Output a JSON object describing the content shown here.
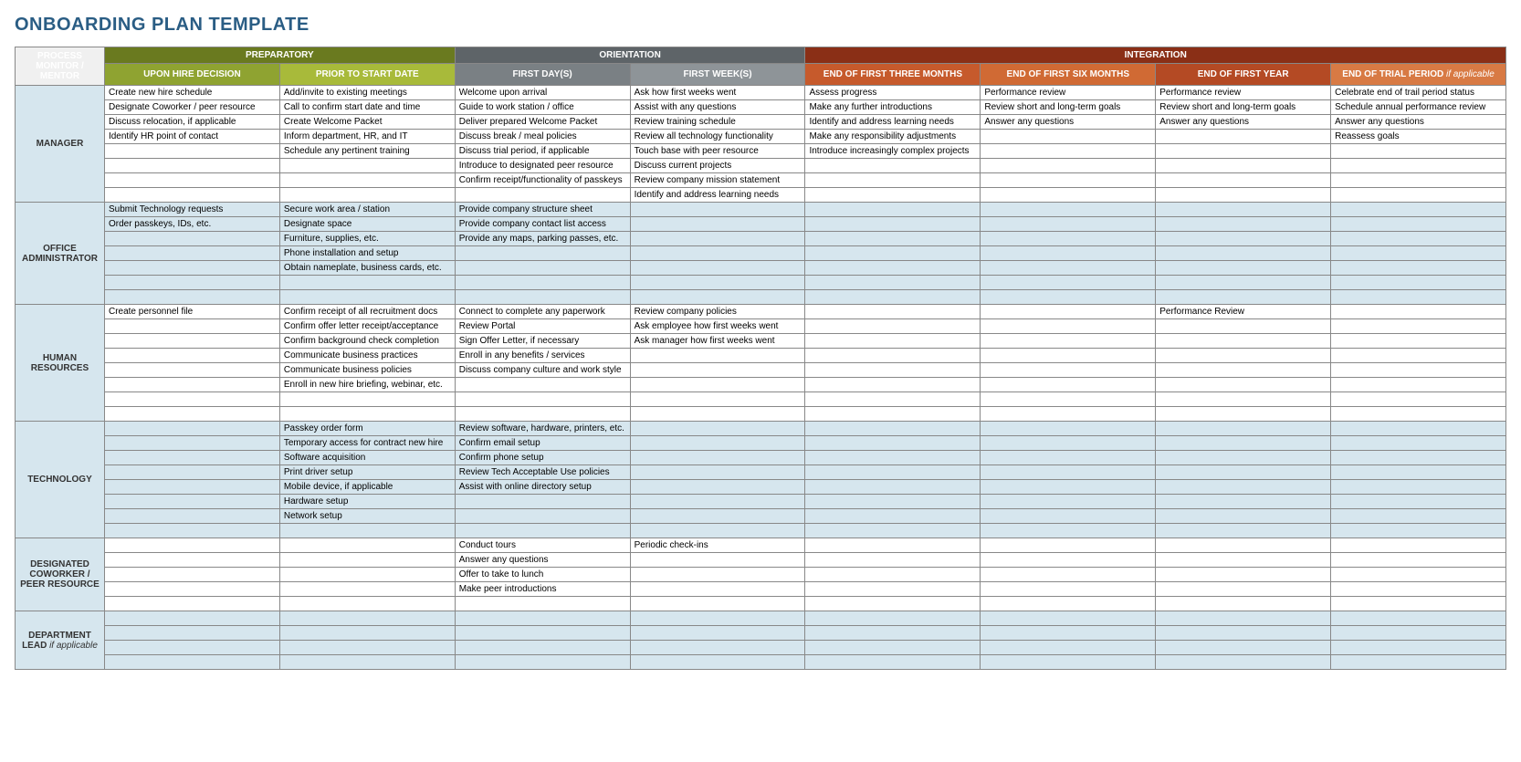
{
  "title": "ONBOARDING PLAN TEMPLATE",
  "corner_label": "PROCESS MONITOR / MENTOR",
  "phases": [
    {
      "label": "PREPARATORY",
      "span": 2,
      "class": "phase-prep"
    },
    {
      "label": "ORIENTATION",
      "span": 2,
      "class": "phase-orient"
    },
    {
      "label": "INTEGRATION",
      "span": 4,
      "class": "phase-integ"
    }
  ],
  "subphases": [
    {
      "label": "UPON HIRE DECISION",
      "class": "sub-prep-1"
    },
    {
      "label": "PRIOR TO START DATE",
      "class": "sub-prep-2"
    },
    {
      "label": "FIRST DAY(S)",
      "class": "sub-orient-1"
    },
    {
      "label": "FIRST WEEK(S)",
      "class": "sub-orient-2"
    },
    {
      "label": "END OF FIRST THREE MONTHS",
      "class": "sub-integ-1"
    },
    {
      "label": "END OF FIRST SIX MONTHS",
      "class": "sub-integ-2"
    },
    {
      "label": "END OF FIRST YEAR",
      "class": "sub-integ-3"
    },
    {
      "label": "END OF TRIAL PERIOD if applicable",
      "class": "sub-integ-4"
    }
  ],
  "sections": [
    {
      "role": "MANAGER",
      "shaded": false,
      "rows": [
        [
          "Create new hire schedule",
          "Add/invite to existing meetings",
          "Welcome upon arrival",
          "Ask how first weeks went",
          "Assess progress",
          "Performance review",
          "Performance review",
          "Celebrate end of trail period status"
        ],
        [
          "Designate Coworker / peer resource",
          "Call to confirm start date and time",
          "Guide to work station / office",
          "Assist with any questions",
          "Make any further introductions",
          "Review short and long-term goals",
          "Review short and long-term goals",
          "Schedule annual performance review"
        ],
        [
          "Discuss relocation, if applicable",
          "Create Welcome Packet",
          "Deliver prepared Welcome Packet",
          "Review training schedule",
          "Identify and address learning needs",
          "Answer any questions",
          "Answer any questions",
          "Answer any questions"
        ],
        [
          "Identify HR point of contact",
          "Inform department, HR, and IT",
          "Discuss break / meal policies",
          "Review all technology functionality",
          "Make any responsibility adjustments",
          "",
          "",
          "Reassess goals"
        ],
        [
          "",
          "Schedule any pertinent training",
          "Discuss trial period, if applicable",
          "Touch base with peer resource",
          "Introduce increasingly complex projects",
          "",
          "",
          ""
        ],
        [
          "",
          "",
          "Introduce to designated peer resource",
          "Discuss current projects",
          "",
          "",
          "",
          ""
        ],
        [
          "",
          "",
          "Confirm receipt/functionality of passkeys",
          "Review company mission statement",
          "",
          "",
          "",
          ""
        ],
        [
          "",
          "",
          "",
          "Identify and address learning needs",
          "",
          "",
          "",
          ""
        ]
      ]
    },
    {
      "role": "OFFICE ADMINISTRATOR",
      "shaded": true,
      "rows": [
        [
          "Submit Technology requests",
          "Secure work area / station",
          "Provide company structure sheet",
          "",
          "",
          "",
          "",
          ""
        ],
        [
          "Order passkeys, IDs, etc.",
          "Designate space",
          "Provide company contact list access",
          "",
          "",
          "",
          "",
          ""
        ],
        [
          "",
          "Furniture, supplies, etc.",
          "Provide any maps, parking passes, etc.",
          "",
          "",
          "",
          "",
          ""
        ],
        [
          "",
          "Phone installation and setup",
          "",
          "",
          "",
          "",
          "",
          ""
        ],
        [
          "",
          "Obtain nameplate, business cards, etc.",
          "",
          "",
          "",
          "",
          "",
          ""
        ],
        [
          "",
          "",
          "",
          "",
          "",
          "",
          "",
          ""
        ],
        [
          "",
          "",
          "",
          "",
          "",
          "",
          "",
          ""
        ]
      ]
    },
    {
      "role": "HUMAN RESOURCES",
      "shaded": false,
      "rows": [
        [
          "Create personnel file",
          "Confirm receipt of all recruitment docs",
          "Connect to complete any paperwork",
          "Review company policies",
          "",
          "",
          "Performance Review",
          ""
        ],
        [
          "",
          "Confirm offer letter receipt/acceptance",
          "Review Portal",
          "Ask employee how first weeks went",
          "",
          "",
          "",
          ""
        ],
        [
          "",
          "Confirm background check completion",
          "Sign Offer Letter, if necessary",
          "Ask manager how first weeks went",
          "",
          "",
          "",
          ""
        ],
        [
          "",
          "Communicate business practices",
          "Enroll in any benefits / services",
          "",
          "",
          "",
          "",
          ""
        ],
        [
          "",
          "Communicate business policies",
          "Discuss company culture and work style",
          "",
          "",
          "",
          "",
          ""
        ],
        [
          "",
          "Enroll in new hire briefing, webinar, etc.",
          "",
          "",
          "",
          "",
          "",
          ""
        ],
        [
          "",
          "",
          "",
          "",
          "",
          "",
          "",
          ""
        ],
        [
          "",
          "",
          "",
          "",
          "",
          "",
          "",
          ""
        ]
      ]
    },
    {
      "role": "TECHNOLOGY",
      "shaded": true,
      "rows": [
        [
          "",
          "Passkey order form",
          "Review software, hardware, printers, etc.",
          "",
          "",
          "",
          "",
          ""
        ],
        [
          "",
          "Temporary access for contract new hire",
          "Confirm email setup",
          "",
          "",
          "",
          "",
          ""
        ],
        [
          "",
          "Software acquisition",
          "Confirm phone setup",
          "",
          "",
          "",
          "",
          ""
        ],
        [
          "",
          "Print driver setup",
          "Review Tech Acceptable Use policies",
          "",
          "",
          "",
          "",
          ""
        ],
        [
          "",
          "Mobile device, if applicable",
          "Assist with online directory setup",
          "",
          "",
          "",
          "",
          ""
        ],
        [
          "",
          "Hardware setup",
          "",
          "",
          "",
          "",
          "",
          ""
        ],
        [
          "",
          "Network setup",
          "",
          "",
          "",
          "",
          "",
          ""
        ],
        [
          "",
          "",
          "",
          "",
          "",
          "",
          "",
          ""
        ]
      ]
    },
    {
      "role": "DESIGNATED COWORKER / PEER RESOURCE",
      "shaded": false,
      "rows": [
        [
          "",
          "",
          "Conduct tours",
          "Periodic check-ins",
          "",
          "",
          "",
          ""
        ],
        [
          "",
          "",
          "Answer any questions",
          "",
          "",
          "",
          "",
          ""
        ],
        [
          "",
          "",
          "Offer to take to lunch",
          "",
          "",
          "",
          "",
          ""
        ],
        [
          "",
          "",
          "Make peer introductions",
          "",
          "",
          "",
          "",
          ""
        ],
        [
          "",
          "",
          "",
          "",
          "",
          "",
          "",
          ""
        ]
      ]
    },
    {
      "role_html": "DEPARTMENT LEAD <span class='ital'>if applicable</span>",
      "role": "DEPARTMENT LEAD if applicable",
      "shaded": true,
      "rows": [
        [
          "",
          "",
          "",
          "",
          "",
          "",
          "",
          ""
        ],
        [
          "",
          "",
          "",
          "",
          "",
          "",
          "",
          ""
        ],
        [
          "",
          "",
          "",
          "",
          "",
          "",
          "",
          ""
        ],
        [
          "",
          "",
          "",
          "",
          "",
          "",
          "",
          ""
        ]
      ]
    }
  ]
}
